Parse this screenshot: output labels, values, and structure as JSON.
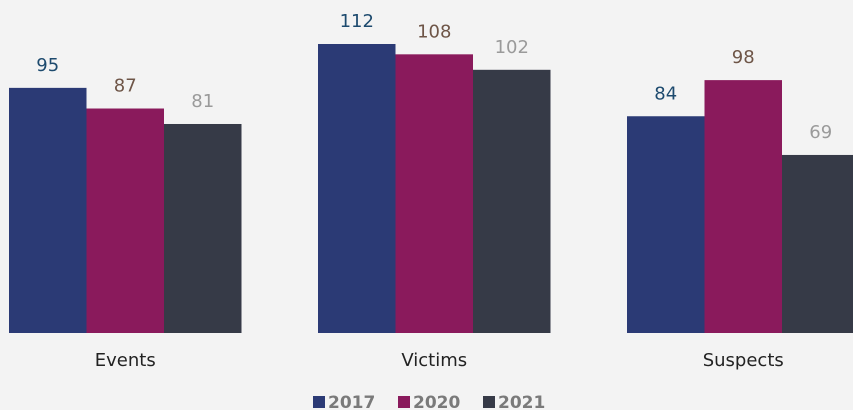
{
  "chart_data": {
    "type": "bar",
    "categories": [
      "Events",
      "Victims",
      "Suspects"
    ],
    "series": [
      {
        "name": "2017",
        "color": "#2b3a75",
        "label_color": "#1d4a6e",
        "values": [
          95,
          112,
          84
        ]
      },
      {
        "name": "2020",
        "color": "#8a1a5c",
        "label_color": "#6e5547",
        "values": [
          87,
          108,
          98
        ]
      },
      {
        "name": "2021",
        "color": "#363a47",
        "label_color": "#9a9a9a",
        "values": [
          81,
          102,
          69
        ]
      }
    ],
    "legend": "bottom"
  }
}
